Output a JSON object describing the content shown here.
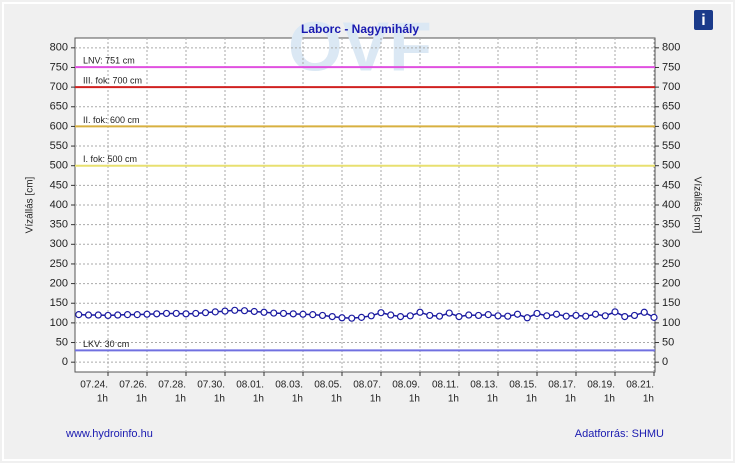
{
  "chart_data": {
    "type": "line",
    "title": "Laborc - Nagymihály",
    "y_label": "Vízállás [cm]",
    "y2_label": "Vízállás [cm]",
    "footer_left": "www.hydroinfo.hu",
    "footer_right": "Adatforrás: SHMU",
    "info_icon": "i",
    "watermark": "OVF",
    "categories": [
      null,
      null,
      null,
      "07.24.",
      null,
      null,
      null,
      "07.26.",
      null,
      null,
      null,
      "07.28.",
      null,
      null,
      null,
      "07.30.",
      null,
      null,
      null,
      "08.01.",
      null,
      null,
      null,
      "08.03.",
      null,
      null,
      null,
      "08.05.",
      null,
      null,
      null,
      "08.07.",
      null,
      null,
      null,
      "08.09.",
      null,
      null,
      null,
      "08.11.",
      null,
      null,
      null,
      "08.13.",
      null,
      null,
      null,
      "08.15.",
      null,
      null,
      null,
      "08.17.",
      null,
      null,
      null,
      "08.19.",
      null,
      null,
      null,
      "08.21."
    ],
    "category_sublabels": [
      null,
      null,
      null,
      "1h",
      null,
      null,
      null,
      "1h",
      null,
      null,
      null,
      "1h",
      null,
      null,
      null,
      "1h",
      null,
      null,
      null,
      "1h",
      null,
      null,
      null,
      "1h",
      null,
      null,
      null,
      "1h",
      null,
      null,
      null,
      "1h",
      null,
      null,
      null,
      "1h",
      null,
      null,
      null,
      "1h",
      null,
      null,
      null,
      "1h",
      null,
      null,
      null,
      "1h",
      null,
      null,
      null,
      "1h",
      null,
      null,
      null,
      "1h",
      null,
      null,
      null,
      "1h"
    ],
    "series": [
      {
        "color": "#1a1aa0",
        "values": [
          121,
          120,
          120,
          119,
          120,
          121,
          121,
          122,
          123,
          124,
          124,
          123,
          124,
          126,
          128,
          130,
          132,
          131,
          129,
          127,
          125,
          124,
          123,
          122,
          121,
          119,
          116,
          113,
          112,
          114,
          118,
          126,
          120,
          116,
          118,
          127,
          119,
          117,
          125,
          116,
          120,
          119,
          121,
          118,
          117,
          122,
          113,
          124,
          118,
          122,
          117,
          119,
          117,
          122,
          118,
          128,
          116,
          119,
          127,
          114
        ]
      }
    ],
    "ref_lines": [
      {
        "label": "LNV: 751 cm",
        "value": 751,
        "color": "#e050e0"
      },
      {
        "label": "III. fok: 700 cm",
        "value": 700,
        "color": "#d02020"
      },
      {
        "label": "II. fok: 600 cm",
        "value": 600,
        "color": "#d8b040"
      },
      {
        "label": "I. fok: 500 cm",
        "value": 500,
        "color": "#e8e070"
      },
      {
        "label": "LKV: 30 cm",
        "value": 30,
        "color": "#7070e0"
      }
    ],
    "ylim": [
      -25,
      825
    ],
    "yticks": [
      0,
      50,
      100,
      150,
      200,
      250,
      300,
      350,
      400,
      450,
      500,
      550,
      600,
      650,
      700,
      750,
      800
    ],
    "y2lim": [
      -25,
      825
    ],
    "y2ticks": [
      0,
      50,
      100,
      150,
      200,
      250,
      300,
      350,
      400,
      450,
      500,
      550,
      600,
      650,
      700,
      750,
      800
    ],
    "grid": true
  }
}
